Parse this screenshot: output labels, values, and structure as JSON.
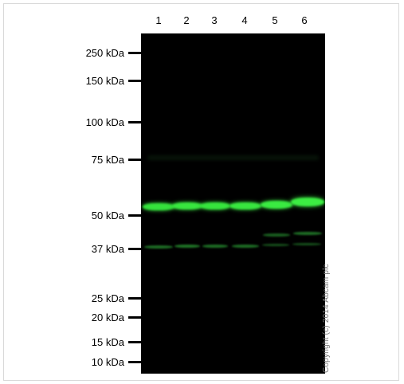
{
  "lanes": [
    "1",
    "2",
    "3",
    "4",
    "5",
    "6"
  ],
  "markers": [
    "250 kDa",
    "150 kDa",
    "100 kDa",
    "75 kDa",
    "50 kDa",
    "37 kDa",
    "25 kDa",
    "20 kDa",
    "15 kDa",
    "10 kDa"
  ],
  "copyright": "Copyright (c) 2014 Abcam plc",
  "colors": {
    "blot_background": "#000000",
    "main_band": "#35e23c",
    "faint_band": "#1d6b24"
  }
}
